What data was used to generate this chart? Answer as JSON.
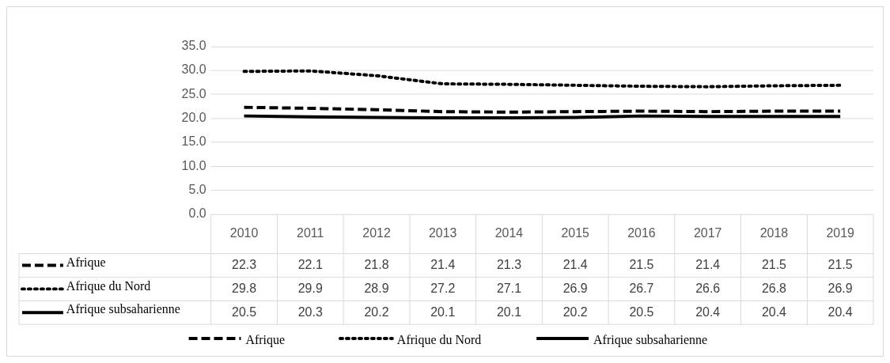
{
  "chart_data": {
    "type": "line",
    "categories": [
      "2010",
      "2011",
      "2012",
      "2013",
      "2014",
      "2015",
      "2016",
      "2017",
      "2018",
      "2019"
    ],
    "series": [
      {
        "name": "Afrique",
        "color": "#000000",
        "line_style": "dashed",
        "values": [
          22.3,
          22.1,
          21.8,
          21.4,
          21.3,
          21.4,
          21.5,
          21.4,
          21.5,
          21.5
        ]
      },
      {
        "name": "Afrique du Nord",
        "color": "#000000",
        "line_style": "dotted",
        "values": [
          29.8,
          29.9,
          28.9,
          27.2,
          27.1,
          26.9,
          26.7,
          26.6,
          26.8,
          26.9
        ]
      },
      {
        "name": "Afrique subsaharienne",
        "color": "#000000",
        "line_style": "solid",
        "values": [
          20.5,
          20.3,
          20.2,
          20.1,
          20.1,
          20.2,
          20.5,
          20.4,
          20.4,
          20.4
        ]
      }
    ],
    "ylim": [
      0,
      35
    ],
    "yticks": [
      {
        "value": 0,
        "label": "0.0"
      },
      {
        "value": 5,
        "label": "5.0"
      },
      {
        "value": 10,
        "label": "10.0"
      },
      {
        "value": 15,
        "label": "15.0"
      },
      {
        "value": 20,
        "label": "20.0"
      },
      {
        "value": 25,
        "label": "25.0"
      },
      {
        "value": 30,
        "label": "30.0"
      },
      {
        "value": 35,
        "label": "35.0"
      }
    ],
    "grid": "y",
    "marker": "none",
    "data_labels": true,
    "legend": "bottom"
  }
}
